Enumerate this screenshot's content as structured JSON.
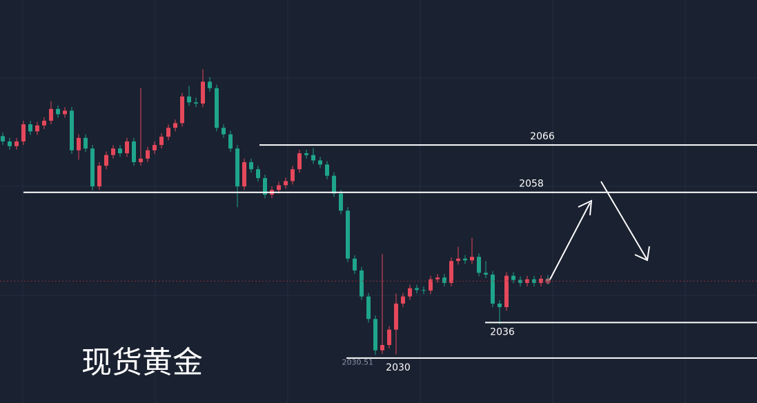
{
  "chart_data": {
    "type": "candlestick",
    "title": "现货黄金",
    "open": [
      2067.5,
      2066.6,
      2065.8,
      2066.6,
      2069.5,
      2068.3,
      2069.3,
      2070.1,
      2072.1,
      2071.2,
      2071.8,
      2065.1,
      2067.2,
      2065.4,
      2059.0,
      2062.5,
      2064.3,
      2065.4,
      2064.6,
      2066.6,
      2063.1,
      2063.7,
      2065.1,
      2066.0,
      2067.4,
      2068.9,
      2069.7,
      2074.2,
      2073.2,
      2073.0,
      2076.7,
      2075.6,
      2068.9,
      2067.8,
      2065.4,
      2059.0,
      2063.1,
      2061.9,
      2060.4,
      2057.6,
      2058.4,
      2059.2,
      2059.9,
      2061.9,
      2064.6,
      2064.3,
      2063.4,
      2062.7,
      2060.8,
      2057.8,
      2054.9,
      2046.8,
      2044.8,
      2040.4,
      2036.6,
      2031.3,
      2032.2,
      2034.8,
      2039.2,
      2040.4,
      2041.8,
      2041.5,
      2041.4,
      2043.3,
      2043.6,
      2042.7,
      2046.4,
      2046.8,
      2046.5,
      2047.1,
      2044.4,
      2044.1,
      2039.2,
      2038.6,
      2043.9,
      2043.2,
      2042.7,
      2043.3,
      2042.7,
      2043.4
    ],
    "high": [
      2068.1,
      2067.2,
      2067.2,
      2070.1,
      2070.1,
      2069.9,
      2070.7,
      2073.4,
      2072.7,
      2072.4,
      2072.4,
      2067.8,
      2067.8,
      2066.0,
      2063.1,
      2064.9,
      2066.0,
      2066.0,
      2067.2,
      2067.2,
      2075.6,
      2065.7,
      2066.6,
      2068.0,
      2069.5,
      2070.3,
      2074.8,
      2076.0,
      2074.0,
      2078.8,
      2077.5,
      2076.2,
      2069.5,
      2068.4,
      2066.0,
      2063.7,
      2063.7,
      2062.5,
      2061.0,
      2059.0,
      2059.8,
      2060.5,
      2062.5,
      2065.2,
      2065.2,
      2065.5,
      2064.0,
      2063.3,
      2061.4,
      2058.4,
      2055.5,
      2047.4,
      2045.4,
      2041.0,
      2037.2,
      2047.6,
      2035.4,
      2040.9,
      2041.0,
      2042.4,
      2042.4,
      2042.1,
      2043.9,
      2044.2,
      2044.2,
      2047.0,
      2048.8,
      2047.4,
      2050.3,
      2047.7,
      2046.4,
      2044.7,
      2039.8,
      2044.5,
      2044.5,
      2043.8,
      2043.9,
      2043.9,
      2044.0,
      2044.0
    ],
    "low": [
      2066.0,
      2065.2,
      2065.2,
      2066.0,
      2067.7,
      2067.7,
      2068.7,
      2069.5,
      2070.6,
      2070.6,
      2064.5,
      2063.5,
      2064.8,
      2058.3,
      2058.4,
      2061.9,
      2063.7,
      2064.0,
      2064.0,
      2062.5,
      2062.5,
      2063.1,
      2064.5,
      2065.4,
      2066.8,
      2068.3,
      2069.1,
      2072.6,
      2072.4,
      2072.4,
      2075.0,
      2068.3,
      2067.2,
      2064.8,
      2055.5,
      2058.4,
      2061.3,
      2059.8,
      2057.0,
      2057.0,
      2057.8,
      2058.6,
      2059.3,
      2061.3,
      2063.7,
      2062.8,
      2062.1,
      2060.2,
      2057.2,
      2054.3,
      2046.2,
      2044.2,
      2039.8,
      2036.0,
      2030.51,
      2030.7,
      2031.6,
      2030.6,
      2038.6,
      2039.8,
      2040.9,
      2040.8,
      2040.8,
      2042.7,
      2042.1,
      2042.1,
      2045.8,
      2045.9,
      2045.9,
      2043.8,
      2043.5,
      2038.6,
      2035.7,
      2038.0,
      2042.6,
      2042.1,
      2042.1,
      2042.1,
      2042.1,
      2042.4
    ],
    "close": [
      2066.6,
      2065.8,
      2066.6,
      2069.5,
      2068.3,
      2069.3,
      2070.1,
      2072.1,
      2071.2,
      2071.8,
      2065.1,
      2067.2,
      2065.4,
      2059.0,
      2062.5,
      2064.3,
      2065.4,
      2064.6,
      2066.6,
      2063.1,
      2063.7,
      2065.1,
      2066.0,
      2067.4,
      2068.9,
      2069.7,
      2074.2,
      2073.2,
      2073.0,
      2076.7,
      2075.6,
      2068.9,
      2067.8,
      2065.4,
      2059.0,
      2063.1,
      2061.9,
      2060.4,
      2057.6,
      2058.4,
      2059.2,
      2059.9,
      2061.9,
      2064.6,
      2064.3,
      2063.4,
      2062.7,
      2060.8,
      2057.8,
      2054.9,
      2046.8,
      2044.8,
      2040.4,
      2036.6,
      2031.3,
      2032.2,
      2034.8,
      2039.2,
      2040.4,
      2041.8,
      2041.5,
      2041.4,
      2043.3,
      2043.6,
      2042.7,
      2046.4,
      2046.8,
      2046.5,
      2047.1,
      2044.4,
      2044.1,
      2039.2,
      2038.6,
      2043.9,
      2043.2,
      2042.7,
      2043.3,
      2042.7,
      2043.4,
      2043.0
    ],
    "up_color": "#e5485b",
    "down_color": "#1fa58b",
    "ylim": [
      2022.4,
      2090.5
    ],
    "levels": [
      2066,
      2058,
      2036,
      2030
    ]
  }
}
